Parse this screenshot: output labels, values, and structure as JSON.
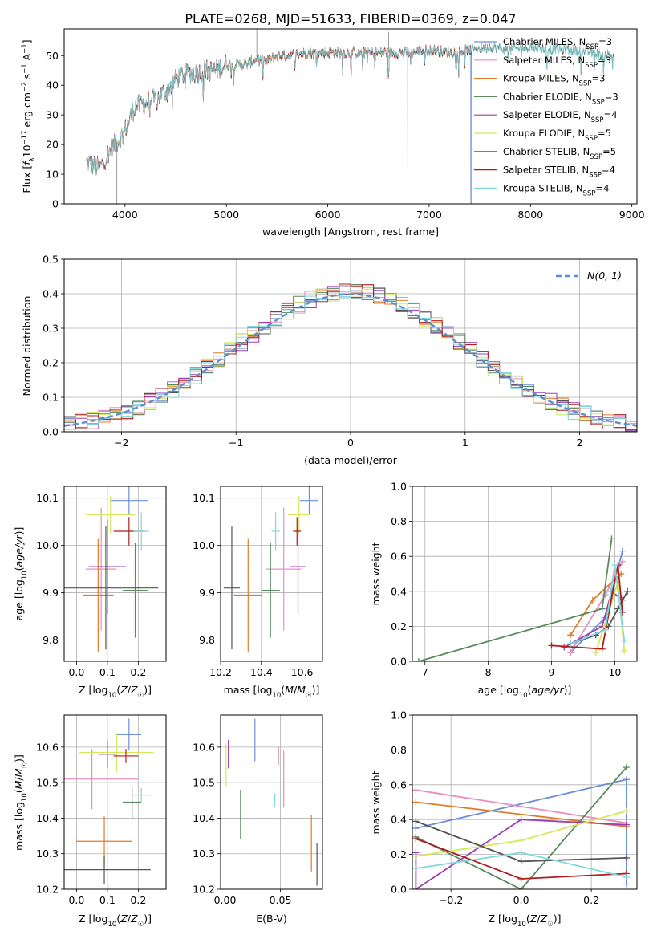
{
  "title": "PLATE=0268, MJD=51633, FIBERID=0369, z=0.047",
  "colors": {
    "chabrier_miles": "#6b8fd8",
    "salpeter_miles": "#e68fc0",
    "kroupa_miles": "#e07b2a",
    "chabrier_elodie": "#5a8a5f",
    "salpeter_elodie": "#9b3fb5",
    "kroupa_elodie": "#d4e85a",
    "chabrier_stelib": "#555555",
    "salpeter_stelib": "#b01c1c",
    "kroupa_stelib": "#80d8e0",
    "normal_curve": "#5a8fd0"
  },
  "legend_models": [
    "Chabrier MILES, N$_{SSP}$=3",
    "Salpeter MILES, N$_{SSP}$=3",
    "Kroupa MILES, N$_{SSP}$=3",
    "Chabrier ELODIE, N$_{SSP}$=3",
    "Salpeter ELODIE, N$_{SSP}$=4",
    "Kroupa ELODIE, N$_{SSP}$=5",
    "Chabrier STELIB, N$_{SSP}$=5",
    "Salpeter STELIB, N$_{SSP}$=4",
    "Kroupa STELIB, N$_{SSP}$=4"
  ],
  "legend_models_display": [
    "Chabrier MILES, N_SSP=3",
    "Salpeter MILES, N_SSP=3",
    "Kroupa MILES, N_SSP=3",
    "Chabrier ELODIE, N_SSP=3",
    "Salpeter ELODIE, N_SSP=4",
    "Kroupa ELODIE, N_SSP=5",
    "Chabrier STELIB, N_SSP=5",
    "Salpeter STELIB, N_SSP=4",
    "Kroupa STELIB, N_SSP=4"
  ],
  "chart_data": [
    {
      "type": "line",
      "panel": "spectrum",
      "xlabel": "wavelength [Angstrom, rest frame]",
      "ylabel": "Flux [f_λ 10^-17 erg cm^-2 s^-1 A^-1]",
      "xlim": [
        3400,
        9050
      ],
      "ylim": [
        0,
        59
      ],
      "xticks": [
        4000,
        5000,
        6000,
        7000,
        8000,
        9000
      ],
      "yticks": [
        0,
        10,
        20,
        30,
        40,
        50
      ],
      "trend_points": [
        [
          3620,
          14
        ],
        [
          3750,
          12
        ],
        [
          3850,
          18
        ],
        [
          3950,
          22
        ],
        [
          4000,
          25
        ],
        [
          4100,
          33
        ],
        [
          4200,
          34
        ],
        [
          4300,
          35
        ],
        [
          4400,
          38
        ],
        [
          4500,
          42
        ],
        [
          4600,
          44
        ],
        [
          4700,
          44
        ],
        [
          4800,
          45
        ],
        [
          4900,
          45
        ],
        [
          5000,
          47
        ],
        [
          5100,
          47
        ],
        [
          5200,
          47
        ],
        [
          5300,
          49
        ],
        [
          5400,
          48
        ],
        [
          5500,
          50
        ],
        [
          5600,
          50
        ],
        [
          5800,
          51
        ],
        [
          6000,
          51
        ],
        [
          6200,
          51
        ],
        [
          6400,
          51
        ],
        [
          6600,
          51
        ],
        [
          6800,
          51
        ],
        [
          7000,
          52
        ],
        [
          7200,
          51
        ],
        [
          7400,
          52
        ],
        [
          7600,
          53
        ],
        [
          7800,
          52
        ],
        [
          8000,
          53
        ],
        [
          8200,
          52
        ],
        [
          8400,
          52
        ],
        [
          8600,
          51
        ],
        [
          8830,
          50
        ]
      ],
      "spectrum_end": [
        7410,
        7420,
        7420,
        8830,
        6790,
        6790,
        8830,
        7420,
        8830
      ],
      "grid": false,
      "legend_position": "upper right"
    },
    {
      "type": "line",
      "panel": "residual_histogram",
      "xlabel": "(data-model)/error",
      "ylabel": "Normed distribution",
      "xlim": [
        -2.5,
        2.5
      ],
      "ylim": [
        0,
        0.5
      ],
      "xticks": [
        -2,
        -1,
        0,
        1,
        2
      ],
      "yticks": [
        0.0,
        0.1,
        0.2,
        0.3,
        0.4,
        0.5
      ],
      "bin_width": 0.1,
      "series": [
        {
          "name": "N(0,1)",
          "function": "standard normal pdf"
        }
      ],
      "legend_label": "N(0, 1)",
      "grid": true,
      "legend_position": "upper right"
    },
    {
      "type": "scatter",
      "panel": "age_vs_Z",
      "xlabel": "Z [log10(Z/Z☉)]",
      "ylabel": "age  [log10(age/yr)]",
      "xlim": [
        -0.04,
        0.29
      ],
      "ylim": [
        9.755,
        10.125
      ],
      "xticks": [
        0.0,
        0.1,
        0.2
      ],
      "yticks": [
        9.8,
        9.9,
        10.0,
        10.1
      ],
      "points": [
        {
          "x": 0.17,
          "y": 10.095,
          "xerr": 0.06,
          "yerr": 0.03
        },
        {
          "x": 0.08,
          "y": 9.95,
          "xerr": 0.05,
          "yerr": 0.13
        },
        {
          "x": 0.07,
          "y": 9.895,
          "xerr": 0.05,
          "yerr": 0.12
        },
        {
          "x": 0.19,
          "y": 9.905,
          "xerr": 0.04,
          "yerr": 0.1
        },
        {
          "x": 0.1,
          "y": 9.955,
          "xerr": 0.06,
          "yerr": 0.1
        },
        {
          "x": 0.11,
          "y": 10.065,
          "xerr": 0.08,
          "yerr": 0.04
        },
        {
          "x": 0.095,
          "y": 9.91,
          "xerr": 0.17,
          "yerr": 0.13
        },
        {
          "x": 0.17,
          "y": 10.03,
          "xerr": 0.05,
          "yerr": 0.03
        },
        {
          "x": 0.21,
          "y": 10.03,
          "xerr": 0.025,
          "yerr": 0.04
        }
      ],
      "grid": true
    },
    {
      "type": "scatter",
      "panel": "age_vs_mass",
      "xlabel": "mass [log10(M/M☉)]",
      "ylabel": "",
      "xlim": [
        10.2,
        10.7
      ],
      "ylim": [
        9.755,
        10.125
      ],
      "xticks": [
        10.2,
        10.4,
        10.6
      ],
      "yticks": [
        9.8,
        9.9,
        10.0,
        10.1
      ],
      "points": [
        {
          "x": 10.635,
          "y": 10.095,
          "xerr": 0.045,
          "yerr": 0.03
        },
        {
          "x": 10.51,
          "y": 9.95,
          "xerr": 0.085,
          "yerr": 0.13
        },
        {
          "x": 10.335,
          "y": 9.895,
          "xerr": 0.07,
          "yerr": 0.12
        },
        {
          "x": 10.445,
          "y": 9.905,
          "xerr": 0.045,
          "yerr": 0.1
        },
        {
          "x": 10.58,
          "y": 9.955,
          "xerr": 0.04,
          "yerr": 0.1
        },
        {
          "x": 10.585,
          "y": 10.065,
          "xerr": 0.055,
          "yerr": 0.04
        },
        {
          "x": 10.255,
          "y": 9.91,
          "xerr": 0.04,
          "yerr": 0.13
        },
        {
          "x": 10.575,
          "y": 10.03,
          "xerr": 0.02,
          "yerr": 0.03
        },
        {
          "x": 10.47,
          "y": 10.03,
          "xerr": 0.02,
          "yerr": 0.04
        }
      ],
      "grid": true
    },
    {
      "type": "line",
      "panel": "mass_weight_vs_age",
      "xlabel": "age  [log10(age/yr)]",
      "ylabel": "mass weight",
      "xlim": [
        6.8,
        10.35
      ],
      "ylim": [
        0,
        1
      ],
      "xticks": [
        7,
        8,
        9,
        10
      ],
      "yticks": [
        0.0,
        0.2,
        0.4,
        0.6,
        0.8,
        1.0
      ],
      "series": [
        {
          "x": [
            9.3,
            9.85,
            10.12
          ],
          "y": [
            0.05,
            0.25,
            0.63
          ]
        },
        {
          "x": [
            9.3,
            9.85,
            10.12
          ],
          "y": [
            0.05,
            0.38,
            0.57
          ]
        },
        {
          "x": [
            9.3,
            9.65,
            10.1
          ],
          "y": [
            0.15,
            0.35,
            0.5
          ]
        },
        {
          "x": [
            6.9,
            9.8,
            9.95
          ],
          "y": [
            0.0,
            0.3,
            0.7
          ]
        },
        {
          "x": [
            9.2,
            9.8,
            9.95,
            10.12
          ],
          "y": [
            0.08,
            0.2,
            0.4,
            0.35
          ]
        },
        {
          "x": [
            9.7,
            9.9,
            10.05,
            10.15
          ],
          "y": [
            0.05,
            0.28,
            0.45,
            0.06
          ]
        },
        {
          "x": [
            9.3,
            9.7,
            9.9,
            10.05,
            10.2
          ],
          "y": [
            0.1,
            0.15,
            0.2,
            0.3,
            0.4
          ]
        },
        {
          "x": [
            9.0,
            9.8,
            10.05,
            10.12
          ],
          "y": [
            0.09,
            0.07,
            0.55,
            0.28
          ]
        },
        {
          "x": [
            9.3,
            9.85,
            10.0,
            10.15
          ],
          "y": [
            0.1,
            0.18,
            0.55,
            0.12
          ]
        }
      ],
      "grid": true
    },
    {
      "type": "scatter",
      "panel": "mass_vs_Z",
      "xlabel": "Z [log10(Z/Z☉)]",
      "ylabel": "mass [log10(M/M☉)]",
      "xlim": [
        -0.04,
        0.29
      ],
      "ylim": [
        10.2,
        10.69
      ],
      "xticks": [
        0.0,
        0.1,
        0.2
      ],
      "yticks": [
        10.2,
        10.3,
        10.4,
        10.5,
        10.6
      ],
      "points": [
        {
          "x": 0.17,
          "y": 10.635,
          "xerr": 0.04,
          "yerr": 0.045
        },
        {
          "x": 0.05,
          "y": 10.51,
          "xerr": 0.15,
          "yerr": 0.085
        },
        {
          "x": 0.09,
          "y": 10.335,
          "xerr": 0.09,
          "yerr": 0.07
        },
        {
          "x": 0.18,
          "y": 10.445,
          "xerr": 0.03,
          "yerr": 0.045
        },
        {
          "x": 0.1,
          "y": 10.58,
          "xerr": 0.03,
          "yerr": 0.04
        },
        {
          "x": 0.13,
          "y": 10.585,
          "xerr": 0.12,
          "yerr": 0.055
        },
        {
          "x": 0.09,
          "y": 10.255,
          "xerr": 0.15,
          "yerr": 0.04
        },
        {
          "x": 0.16,
          "y": 10.575,
          "xerr": 0.04,
          "yerr": 0.02
        },
        {
          "x": 0.21,
          "y": 10.465,
          "xerr": 0.03,
          "yerr": 0.02
        }
      ],
      "grid": true
    },
    {
      "type": "scatter",
      "panel": "mass_vs_EBV",
      "xlabel": "E(B-V)",
      "ylabel": "",
      "xlim": [
        -0.004,
        0.088
      ],
      "ylim": [
        10.2,
        10.69
      ],
      "xticks": [
        0.0,
        0.05
      ],
      "yticks": [
        10.2,
        10.3,
        10.4,
        10.5,
        10.6
      ],
      "points": [
        {
          "x": 0.027,
          "y": 10.62,
          "yerr": 0.06
        },
        {
          "x": 0.053,
          "y": 10.51,
          "yerr": 0.08
        },
        {
          "x": 0.078,
          "y": 10.33,
          "yerr": 0.08
        },
        {
          "x": 0.014,
          "y": 10.41,
          "yerr": 0.07
        },
        {
          "x": 0.003,
          "y": 10.58,
          "yerr": 0.04
        },
        {
          "x": 0.001,
          "y": 10.55,
          "yerr": 0.06
        },
        {
          "x": 0.083,
          "y": 10.27,
          "yerr": 0.06
        },
        {
          "x": 0.048,
          "y": 10.575,
          "yerr": 0.025
        },
        {
          "x": 0.045,
          "y": 10.45,
          "yerr": 0.02
        }
      ],
      "grid": true
    },
    {
      "type": "line",
      "panel": "mass_weight_vs_Z",
      "xlabel": "Z [log10(Z/Z☉)]",
      "ylabel": "mass weight",
      "xlim": [
        -0.31,
        0.33
      ],
      "ylim": [
        0,
        1
      ],
      "xticks": [
        -0.2,
        0.0,
        0.2
      ],
      "yticks": [
        0.0,
        0.2,
        0.4,
        0.6,
        0.8,
        1.0
      ],
      "series": [
        {
          "x": [
            -0.3,
            0.3,
            0.3
          ],
          "y": [
            0.35,
            0.63,
            0.03
          ]
        },
        {
          "x": [
            -0.3,
            0.3
          ],
          "y": [
            0.57,
            0.38
          ]
        },
        {
          "x": [
            -0.3,
            0.3
          ],
          "y": [
            0.5,
            0.36
          ]
        },
        {
          "x": [
            -0.3,
            0.0,
            0.3
          ],
          "y": [
            0.3,
            0.0,
            0.7
          ]
        },
        {
          "x": [
            -0.3,
            -0.3,
            0.0,
            0.3
          ],
          "y": [
            0.21,
            0.0,
            0.4,
            0.37
          ]
        },
        {
          "x": [
            -0.3,
            0.0,
            0.3
          ],
          "y": [
            0.19,
            0.28,
            0.45
          ]
        },
        {
          "x": [
            -0.3,
            0.0,
            0.3
          ],
          "y": [
            0.39,
            0.16,
            0.18
          ]
        },
        {
          "x": [
            -0.3,
            0.0,
            0.3
          ],
          "y": [
            0.29,
            0.06,
            0.09
          ]
        },
        {
          "x": [
            -0.3,
            0.0,
            0.3
          ],
          "y": [
            0.12,
            0.21,
            0.07
          ]
        }
      ],
      "grid": true
    }
  ]
}
